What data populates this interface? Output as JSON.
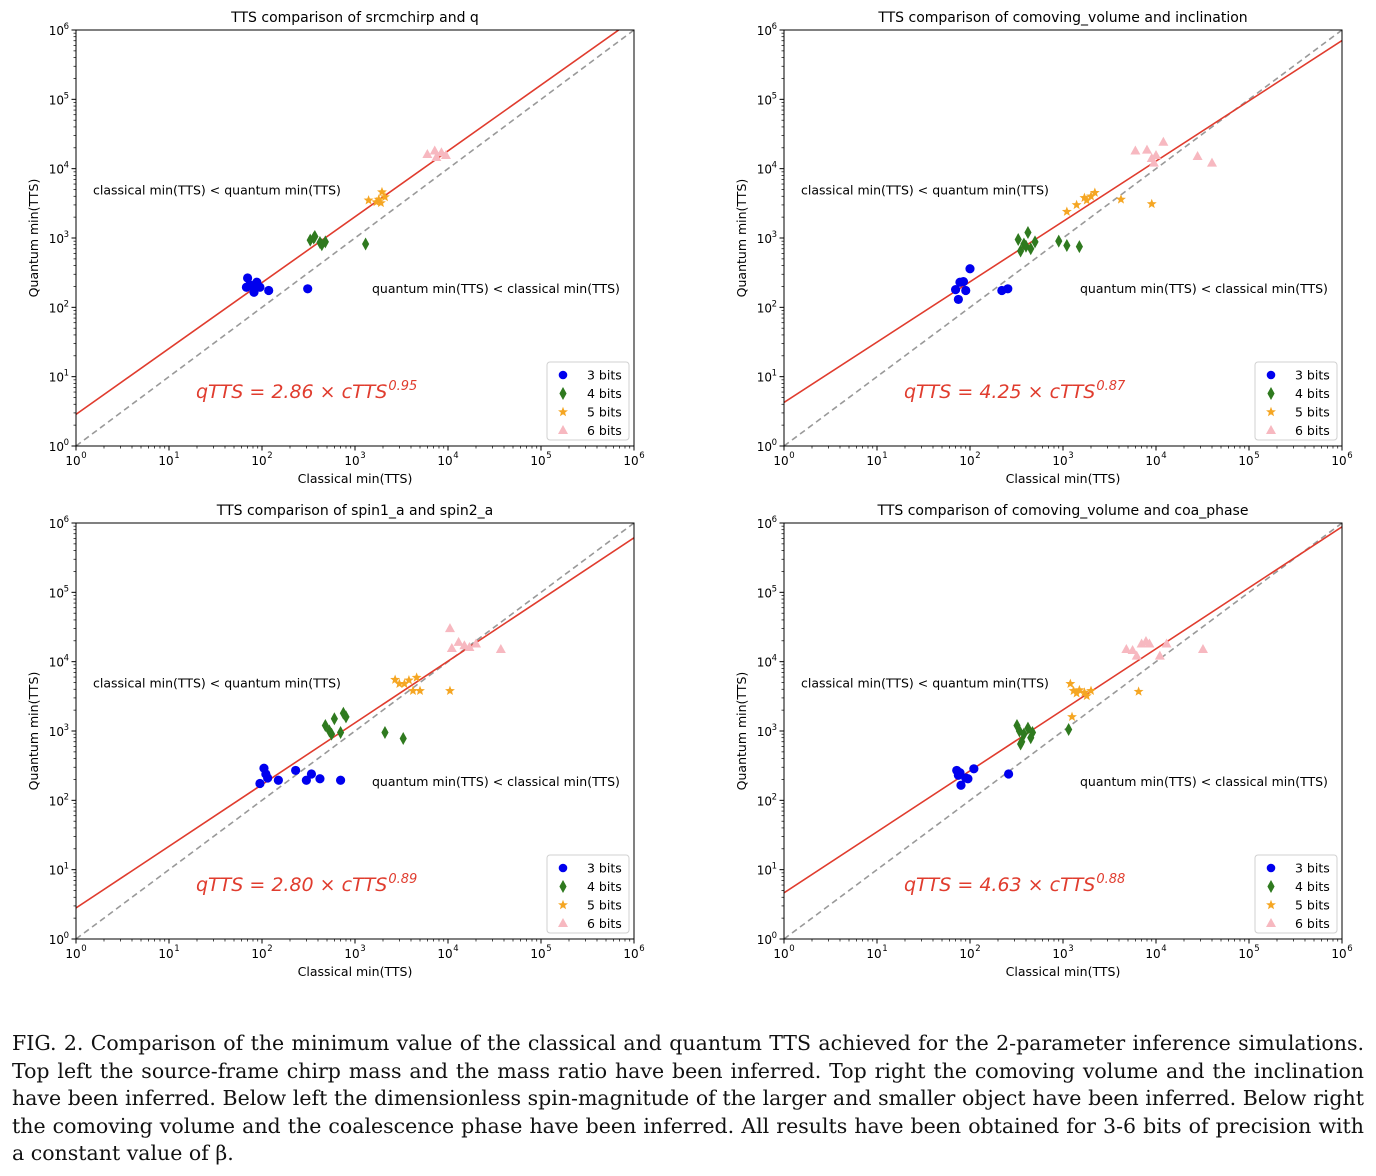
{
  "chart_data": [
    {
      "type": "scatter",
      "title": "TTS comparison of srcmchirp and q",
      "xlabel": "Classical min(TTS)",
      "ylabel": "Quantum min(TTS)",
      "xscale": "log",
      "yscale": "log",
      "xlim": [
        1,
        1000000
      ],
      "ylim": [
        1,
        1000000
      ],
      "tick_labels": [
        "10",
        "10",
        "10",
        "10",
        "10",
        "10",
        "10"
      ],
      "tick_exponents": [
        "0",
        "1",
        "2",
        "3",
        "4",
        "5",
        "6"
      ],
      "region_upper": "classical min(TTS) < quantum min(TTS)",
      "region_lower": "quantum min(TTS) < classical min(TTS)",
      "fit": {
        "coef": 2.86,
        "exp": 0.95,
        "label_main": "qTTS = 2.86 × cTTS",
        "label_exp": "0.95"
      },
      "legend": "lower right",
      "series": [
        {
          "name": "3 bits",
          "x": [
            70,
            68,
            78,
            82,
            88,
            74,
            95,
            118,
            310
          ],
          "y": [
            265,
            195,
            205,
            165,
            230,
            210,
            195,
            175,
            185
          ]
        },
        {
          "name": "4 bits",
          "x": [
            330,
            370,
            420,
            480,
            360,
            440,
            1300
          ],
          "y": [
            930,
            1050,
            860,
            880,
            1000,
            800,
            820
          ]
        },
        {
          "name": "5 bits",
          "x": [
            1800,
            1950,
            1400,
            2100,
            1700,
            1900
          ],
          "y": [
            3600,
            4600,
            3500,
            3900,
            3300,
            3200
          ]
        },
        {
          "name": "6 bits",
          "x": [
            6000,
            7200,
            8500,
            9500,
            7500
          ],
          "y": [
            16000,
            18000,
            17000,
            15500,
            14500
          ]
        }
      ]
    },
    {
      "type": "scatter",
      "title": "TTS comparison of comoving_volume and inclination",
      "xlabel": "Classical min(TTS)",
      "ylabel": "Quantum min(TTS)",
      "xscale": "log",
      "yscale": "log",
      "xlim": [
        1,
        1000000
      ],
      "ylim": [
        1,
        1000000
      ],
      "tick_labels": [
        "10",
        "10",
        "10",
        "10",
        "10",
        "10",
        "10"
      ],
      "tick_exponents": [
        "0",
        "1",
        "2",
        "3",
        "4",
        "5",
        "6"
      ],
      "region_upper": "classical min(TTS) < quantum min(TTS)",
      "region_lower": "quantum min(TTS) < classical min(TTS)",
      "fit": {
        "coef": 4.25,
        "exp": 0.87,
        "label_main": "qTTS = 4.25 × cTTS",
        "label_exp": "0.87"
      },
      "legend": "lower right",
      "series": [
        {
          "name": "3 bits",
          "x": [
            70,
            78,
            85,
            90,
            75,
            100,
            220,
            255
          ],
          "y": [
            180,
            230,
            235,
            175,
            130,
            360,
            175,
            185
          ]
        },
        {
          "name": "4 bits",
          "x": [
            330,
            380,
            420,
            450,
            500,
            900,
            1100,
            1500,
            400,
            350
          ],
          "y": [
            950,
            820,
            1200,
            700,
            880,
            900,
            780,
            750,
            760,
            650
          ]
        },
        {
          "name": "5 bits",
          "x": [
            1100,
            1400,
            1800,
            2000,
            2200,
            1700,
            4200,
            9000
          ],
          "y": [
            2400,
            3000,
            3500,
            4000,
            4500,
            3800,
            3600,
            3100
          ]
        },
        {
          "name": "6 bits",
          "x": [
            6000,
            8000,
            9000,
            12000,
            10000,
            9500,
            28000,
            40000
          ],
          "y": [
            18000,
            18500,
            14000,
            24000,
            15500,
            12000,
            15000,
            12000
          ]
        }
      ]
    },
    {
      "type": "scatter",
      "title": "TTS comparison of spin1_a and spin2_a",
      "xlabel": "Classical min(TTS)",
      "ylabel": "Quantum min(TTS)",
      "xscale": "log",
      "yscale": "log",
      "xlim": [
        1,
        1000000
      ],
      "ylim": [
        1,
        1000000
      ],
      "tick_labels": [
        "10",
        "10",
        "10",
        "10",
        "10",
        "10",
        "10"
      ],
      "tick_exponents": [
        "0",
        "1",
        "2",
        "3",
        "4",
        "5",
        "6"
      ],
      "region_upper": "classical min(TTS) < quantum min(TTS)",
      "region_lower": "quantum min(TTS) < classical min(TTS)",
      "fit": {
        "coef": 2.8,
        "exp": 0.89,
        "label_main": "qTTS = 2.80 × cTTS",
        "label_exp": "0.89"
      },
      "legend": "lower right",
      "series": [
        {
          "name": "3 bits",
          "x": [
            95,
            105,
            115,
            110,
            150,
            230,
            300,
            340,
            420,
            700
          ],
          "y": [
            175,
            290,
            210,
            240,
            195,
            270,
            195,
            240,
            205,
            195
          ]
        },
        {
          "name": "4 bits",
          "x": [
            480,
            530,
            600,
            700,
            750,
            800,
            560,
            2100,
            3300
          ],
          "y": [
            1200,
            1000,
            1500,
            950,
            1800,
            1600,
            900,
            950,
            780
          ]
        },
        {
          "name": "5 bits",
          "x": [
            2700,
            3000,
            3400,
            3800,
            4200,
            4600,
            5000,
            10500
          ],
          "y": [
            5500,
            4800,
            4800,
            5400,
            3800,
            5900,
            3800,
            3800
          ]
        },
        {
          "name": "6 bits",
          "x": [
            10500,
            11000,
            13000,
            15000,
            17000,
            20000,
            37000
          ],
          "y": [
            30000,
            15500,
            19000,
            17000,
            16000,
            18000,
            15000
          ]
        }
      ]
    },
    {
      "type": "scatter",
      "title": "TTS comparison of comoving_volume and coa_phase",
      "xlabel": "Classical min(TTS)",
      "ylabel": "Quantum min(TTS)",
      "xscale": "log",
      "yscale": "log",
      "xlim": [
        1,
        1000000
      ],
      "ylim": [
        1,
        1000000
      ],
      "tick_labels": [
        "10",
        "10",
        "10",
        "10",
        "10",
        "10",
        "10"
      ],
      "tick_exponents": [
        "0",
        "1",
        "2",
        "3",
        "4",
        "5",
        "6"
      ],
      "region_upper": "classical min(TTS) < quantum min(TTS)",
      "region_lower": "quantum min(TTS) < classical min(TTS)",
      "fit": {
        "coef": 4.63,
        "exp": 0.88,
        "label_main": "qTTS = 4.63 × cTTS",
        "label_exp": "0.88"
      },
      "legend": "lower right",
      "series": [
        {
          "name": "3 bits",
          "x": [
            72,
            75,
            80,
            90,
            95,
            110,
            260,
            78
          ],
          "y": [
            270,
            230,
            165,
            210,
            205,
            285,
            240,
            250
          ]
        },
        {
          "name": "4 bits",
          "x": [
            320,
            340,
            360,
            380,
            420,
            450,
            470,
            1150,
            350
          ],
          "y": [
            1200,
            1000,
            700,
            900,
            1100,
            800,
            950,
            1050,
            650
          ]
        },
        {
          "name": "5 bits",
          "x": [
            1200,
            1300,
            1400,
            1500,
            1700,
            1800,
            2000,
            6500,
            1250
          ],
          "y": [
            4800,
            3800,
            3500,
            3900,
            3600,
            3200,
            3800,
            3700,
            1600
          ]
        },
        {
          "name": "6 bits",
          "x": [
            4800,
            5600,
            6200,
            7000,
            7800,
            8500,
            11000,
            13000,
            32000
          ],
          "y": [
            15000,
            14500,
            12000,
            18000,
            19500,
            18000,
            12000,
            18000,
            15000
          ]
        }
      ]
    }
  ],
  "caption": "FIG. 2. Comparison of the minimum value of the classical and quantum TTS achieved for the 2-parameter inference simulations. Top left the source-frame chirp mass and the mass ratio have been inferred. Top right the comoving volume and the inclination have been inferred. Below left the dimensionless spin-magnitude of the larger and smaller object have been inferred. Below right the comoving volume and the coalescence phase have been inferred. All results have been obtained for 3-6 bits of precision with a constant value of β.",
  "colors": {
    "3 bits": "#0000ee",
    "4 bits": "#2f7a1f",
    "5 bits": "#f5a623",
    "6 bits": "#f7b8c0",
    "fit_line": "#e03c2e",
    "diagonal": "#999999",
    "fit_label": "#e03c2e"
  },
  "markers": {
    "3 bits": "circle",
    "4 bits": "diamond",
    "5 bits": "star",
    "6 bits": "triangle"
  }
}
